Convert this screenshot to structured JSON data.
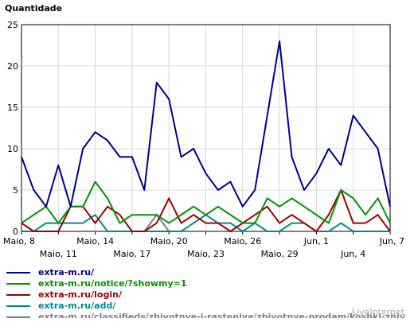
{
  "chart_data": {
    "type": "line",
    "ylabel": "Quantidade",
    "ylim": [
      0,
      25
    ],
    "yticks": [
      "0",
      "5",
      "10",
      "15",
      "20",
      "25"
    ],
    "x": [
      "Maio, 8",
      "Maio, 9",
      "Maio, 10",
      "Maio, 11",
      "Maio, 12",
      "Maio, 13",
      "Maio, 14",
      "Maio, 15",
      "Maio, 16",
      "Maio, 17",
      "Maio, 18",
      "Maio, 19",
      "Maio, 20",
      "Maio, 21",
      "Maio, 22",
      "Maio, 23",
      "Maio, 24",
      "Maio, 25",
      "Maio, 26",
      "Maio, 27",
      "Maio, 28",
      "Maio, 29",
      "Maio, 30",
      "Maio, 31",
      "Jun, 1",
      "Jun, 2",
      "Jun, 3",
      "Jun, 4",
      "Jun, 5",
      "Jun, 6",
      "Jun, 7"
    ],
    "xtick_labels": [
      {
        "index": 0,
        "text": "Maio, 8",
        "row": 0
      },
      {
        "index": 3,
        "text": "Maio, 11",
        "row": 1
      },
      {
        "index": 6,
        "text": "Maio, 14",
        "row": 0
      },
      {
        "index": 9,
        "text": "Maio, 17",
        "row": 1
      },
      {
        "index": 12,
        "text": "Maio, 20",
        "row": 0
      },
      {
        "index": 15,
        "text": "Maio, 23",
        "row": 1
      },
      {
        "index": 18,
        "text": "Maio, 26",
        "row": 0
      },
      {
        "index": 21,
        "text": "Maio, 29",
        "row": 1
      },
      {
        "index": 24,
        "text": "Jun, 1",
        "row": 0
      },
      {
        "index": 27,
        "text": "Jun, 4",
        "row": 1
      },
      {
        "index": 30,
        "text": "Jun, 7",
        "row": 0
      }
    ],
    "series": [
      {
        "name": "extra-m.ru/",
        "color": "#00008b",
        "values": [
          9,
          5,
          3,
          8,
          3,
          10,
          12,
          11,
          9,
          9,
          5,
          18,
          16,
          9,
          10,
          7,
          5,
          6,
          3,
          5,
          14,
          23,
          9,
          5,
          7,
          10,
          8,
          14,
          12,
          10,
          3
        ]
      },
      {
        "name": "extra-m.ru/notice/?showmy=1",
        "color": "#009400",
        "values": [
          1,
          2,
          3,
          1,
          3,
          3,
          6,
          4,
          1,
          2,
          2,
          2,
          1,
          2,
          3,
          2,
          3,
          2,
          1,
          1,
          4,
          3,
          4,
          3,
          2,
          1,
          5,
          4,
          2,
          4,
          1
        ]
      },
      {
        "name": "extra-m.ru/login/",
        "color": "#a00000",
        "values": [
          1,
          0,
          0,
          0,
          3,
          3,
          1,
          3,
          2,
          0,
          0,
          1,
          4,
          1,
          2,
          1,
          1,
          0,
          1,
          2,
          3,
          1,
          2,
          1,
          0,
          2,
          5,
          1,
          1,
          2,
          0
        ]
      },
      {
        "name": "extra-m.ru/add/",
        "color": "#008b8b",
        "values": [
          0,
          0,
          1,
          1,
          1,
          1,
          2,
          0,
          0,
          0,
          0,
          0,
          0,
          0,
          1,
          2,
          1,
          1,
          0,
          1,
          0,
          0,
          1,
          1,
          0,
          0,
          1,
          0,
          0,
          0,
          0
        ]
      },
      {
        "name": "extra-m.ru/classifieds/zhivotnye-i-rasteniya/zhivotnye-prodam/koshki-zhiv",
        "color": "#808080",
        "values": [
          0,
          0,
          0,
          0,
          0,
          0,
          0,
          0,
          0,
          0,
          0,
          2,
          0,
          0,
          0,
          0,
          0,
          0,
          0,
          0,
          0,
          0,
          0,
          0,
          0,
          0,
          0,
          0,
          0,
          0,
          0
        ]
      }
    ]
  },
  "watermark": "LiveInternet"
}
